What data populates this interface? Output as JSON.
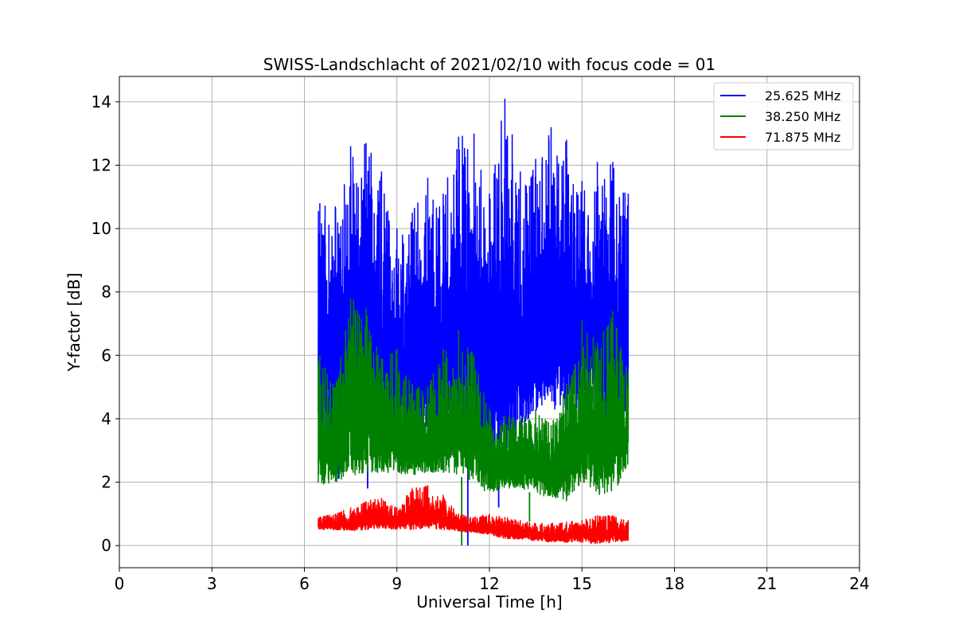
{
  "chart_data": {
    "type": "line",
    "title": "SWISS-Landschlacht of 2021/02/10 with focus code = 01",
    "xlabel": "Universal Time [h]",
    "ylabel": "Y-factor [dB]",
    "xlim": [
      0,
      24
    ],
    "ylim": [
      -0.7,
      14.8
    ],
    "xticks": [
      0,
      3,
      6,
      9,
      12,
      15,
      18,
      21,
      24
    ],
    "yticks": [
      0,
      2,
      4,
      6,
      8,
      10,
      12,
      14
    ],
    "grid": true,
    "legend_position": "top-right",
    "series": [
      {
        "name": "25.625 MHz",
        "color": "#0000ff",
        "x_range": [
          6.45,
          16.5
        ],
        "envelope": {
          "x": [
            6.5,
            7.0,
            7.5,
            8.0,
            8.5,
            9.0,
            9.5,
            10.0,
            10.5,
            11.0,
            11.5,
            12.0,
            12.5,
            13.0,
            13.5,
            14.0,
            14.5,
            15.0,
            15.5,
            16.0,
            16.5
          ],
          "y_min": [
            3.0,
            3.3,
            3.7,
            4.0,
            3.6,
            3.4,
            3.3,
            3.4,
            3.6,
            3.3,
            2.8,
            2.4,
            2.6,
            3.6,
            4.2,
            4.3,
            4.3,
            4.2,
            3.9,
            3.4,
            4.4
          ],
          "y_max": [
            10.8,
            10.7,
            12.6,
            12.7,
            11.8,
            10.0,
            10.5,
            11.6,
            11.1,
            12.9,
            13.0,
            11.1,
            14.1,
            11.8,
            12.2,
            13.2,
            12.8,
            11.5,
            12.1,
            12.1,
            11.1
          ]
        },
        "dips": [
          {
            "x": 7.1,
            "y": 2.1
          },
          {
            "x": 8.05,
            "y": 1.8
          },
          {
            "x": 11.3,
            "y": 0.0
          },
          {
            "x": 12.3,
            "y": 1.2
          }
        ]
      },
      {
        "name": "38.250 MHz",
        "color": "#008000",
        "x_range": [
          6.45,
          16.5
        ],
        "envelope": {
          "x": [
            6.5,
            7.0,
            7.5,
            8.0,
            8.5,
            9.0,
            9.5,
            10.0,
            10.5,
            11.0,
            11.5,
            12.0,
            12.5,
            13.0,
            13.5,
            14.0,
            14.5,
            15.0,
            15.5,
            16.0,
            16.5
          ],
          "y_min": [
            1.9,
            2.0,
            2.2,
            2.3,
            2.3,
            2.3,
            2.2,
            2.3,
            2.3,
            2.2,
            2.0,
            1.6,
            1.8,
            1.8,
            1.6,
            1.5,
            1.4,
            2.0,
            1.6,
            1.6,
            2.5
          ],
          "y_max": [
            6.0,
            5.0,
            7.8,
            7.5,
            5.9,
            6.2,
            5.1,
            5.0,
            6.2,
            6.8,
            6.0,
            4.3,
            4.1,
            4.0,
            4.3,
            3.8,
            5.1,
            7.1,
            6.4,
            7.4,
            5.4
          ]
        },
        "dips": [
          {
            "x": 11.1,
            "y": 0.0
          },
          {
            "x": 13.3,
            "y": 0.75
          }
        ]
      },
      {
        "name": "71.875 MHz",
        "color": "#ff0000",
        "x_range": [
          6.45,
          16.5
        ],
        "envelope": {
          "x": [
            6.5,
            7.0,
            7.5,
            8.0,
            8.5,
            9.0,
            9.5,
            10.0,
            10.5,
            11.0,
            11.5,
            12.0,
            12.5,
            13.0,
            13.5,
            14.0,
            14.5,
            15.0,
            15.5,
            16.0,
            16.5
          ],
          "y_min": [
            0.5,
            0.5,
            0.45,
            0.5,
            0.55,
            0.5,
            0.5,
            0.55,
            0.5,
            0.45,
            0.4,
            0.35,
            0.2,
            0.2,
            0.15,
            0.1,
            0.1,
            0.1,
            0.05,
            0.1,
            0.15
          ],
          "y_max": [
            0.9,
            1.0,
            1.2,
            1.4,
            1.5,
            1.2,
            1.8,
            1.9,
            1.6,
            1.0,
            0.9,
            1.0,
            0.9,
            0.8,
            0.7,
            0.7,
            0.75,
            0.8,
            0.95,
            0.95,
            0.8
          ]
        },
        "dips": []
      }
    ]
  }
}
